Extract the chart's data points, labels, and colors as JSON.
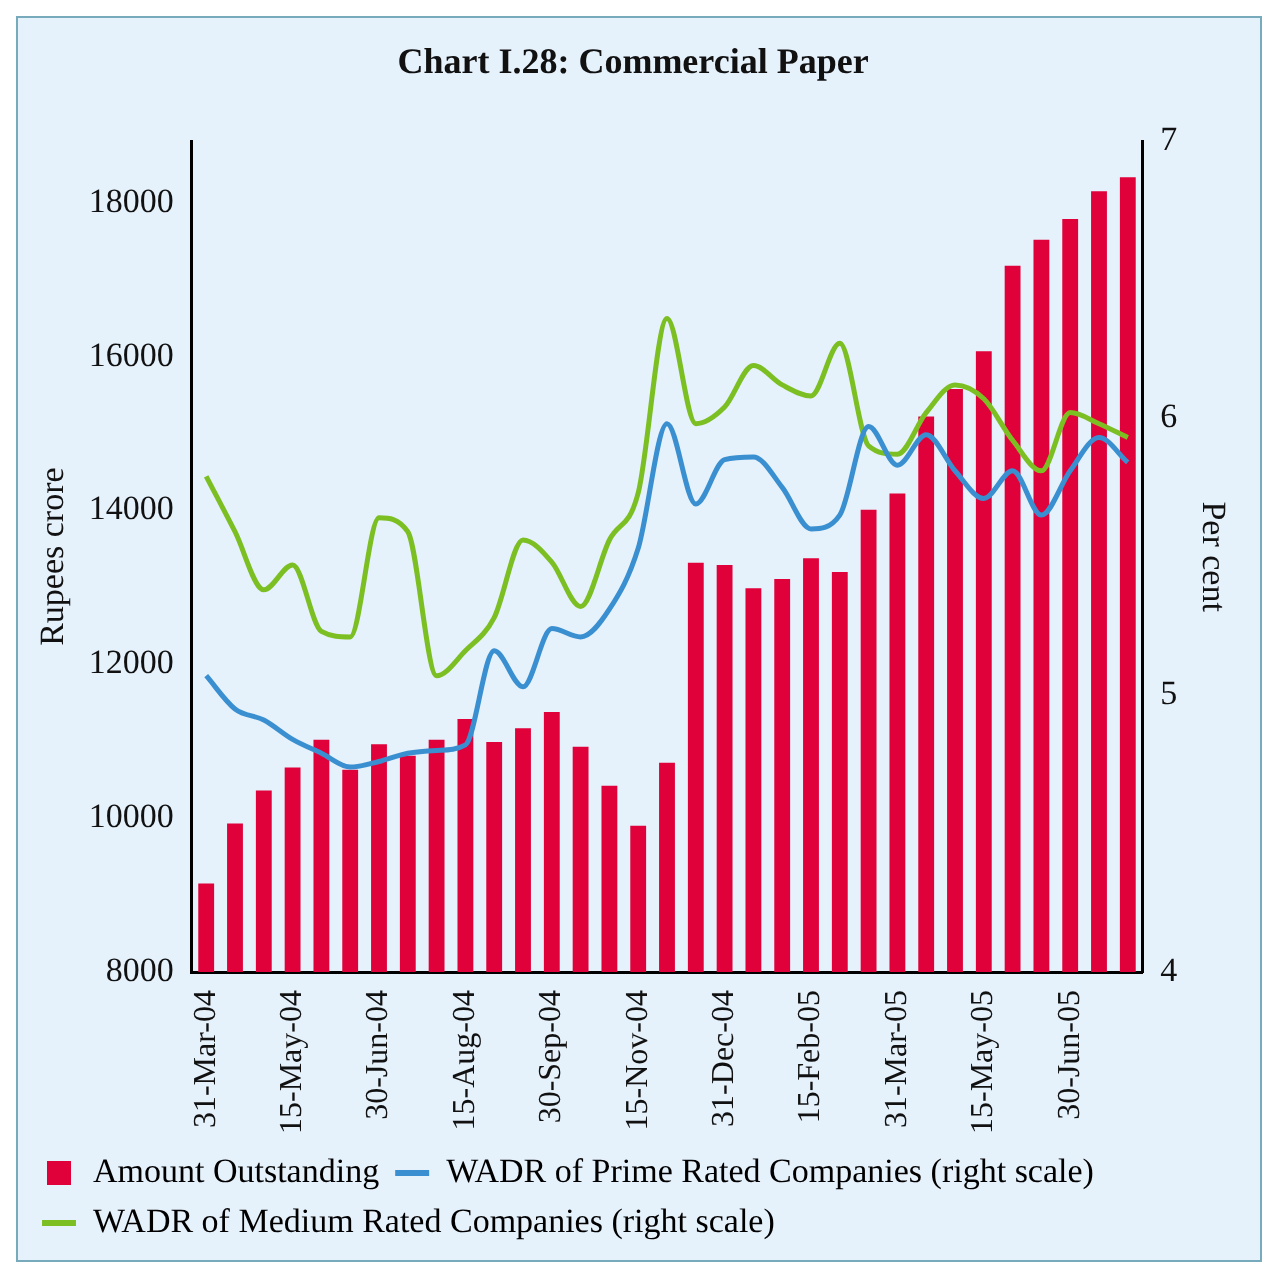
{
  "chart_data": {
    "type": "bar",
    "title": "Chart I.28: Commercial Paper",
    "ylabel": "Rupees crore",
    "y2label": "Per cent",
    "categories": [
      "31-Mar-04",
      null,
      null,
      "15-May-04",
      null,
      null,
      "30-Jun-04",
      null,
      null,
      "15-Aug-04",
      null,
      null,
      "30-Sep-04",
      null,
      null,
      "15-Nov-04",
      null,
      null,
      "31-Dec-04",
      null,
      null,
      "15-Feb-05",
      null,
      null,
      "31-Mar-05",
      null,
      null,
      "15-May-05",
      null,
      null,
      "30-Jun-05",
      null,
      null
    ],
    "series": [
      {
        "name": "Amount Outstanding",
        "color": "#e0003a",
        "values": [
          9150,
          9930,
          10360,
          10660,
          11020,
          10630,
          10960,
          10810,
          11020,
          11290,
          10990,
          11170,
          11380,
          10930,
          10420,
          9900,
          10720,
          13320,
          13290,
          12990,
          13110,
          13380,
          13200,
          14010,
          14220,
          15220,
          15580,
          16070,
          17180,
          17520,
          17790,
          18150,
          18330
        ]
      },
      {
        "name": "WADR of Prime Rated Companies (right scale)",
        "type": "line",
        "axis": "y2",
        "color": "#3a8fd0",
        "values": [
          5.07,
          4.95,
          4.91,
          4.84,
          4.79,
          4.74,
          4.76,
          4.79,
          4.8,
          4.82,
          5.16,
          5.03,
          5.24,
          5.21,
          5.31,
          5.53,
          5.98,
          5.69,
          5.85,
          5.86,
          5.75,
          5.6,
          5.65,
          5.97,
          5.83,
          5.94,
          5.81,
          5.71,
          5.81,
          5.65,
          5.81,
          5.93,
          5.84
        ]
      },
      {
        "name": "WADR of Medium Rated Companies (right scale)",
        "type": "line",
        "axis": "y2",
        "color": "#7cbf22",
        "values": [
          5.79,
          5.59,
          5.38,
          5.47,
          5.23,
          5.21,
          5.64,
          5.59,
          5.07,
          5.16,
          5.28,
          5.56,
          5.48,
          5.32,
          5.56,
          5.73,
          6.36,
          5.98,
          6.04,
          6.19,
          6.12,
          6.08,
          6.27,
          5.9,
          5.87,
          6.02,
          6.12,
          6.07,
          5.92,
          5.81,
          6.02,
          5.98,
          5.93
        ]
      }
    ],
    "ylim": [
      8000,
      18800
    ],
    "yticks": [
      8000,
      10000,
      12000,
      14000,
      16000,
      18000
    ],
    "y2lim": [
      4,
      7
    ],
    "y2ticks": [
      4,
      5,
      6,
      7
    ],
    "grid": false,
    "legend": "bottom left",
    "marker": "none",
    "line_style": "solid"
  }
}
